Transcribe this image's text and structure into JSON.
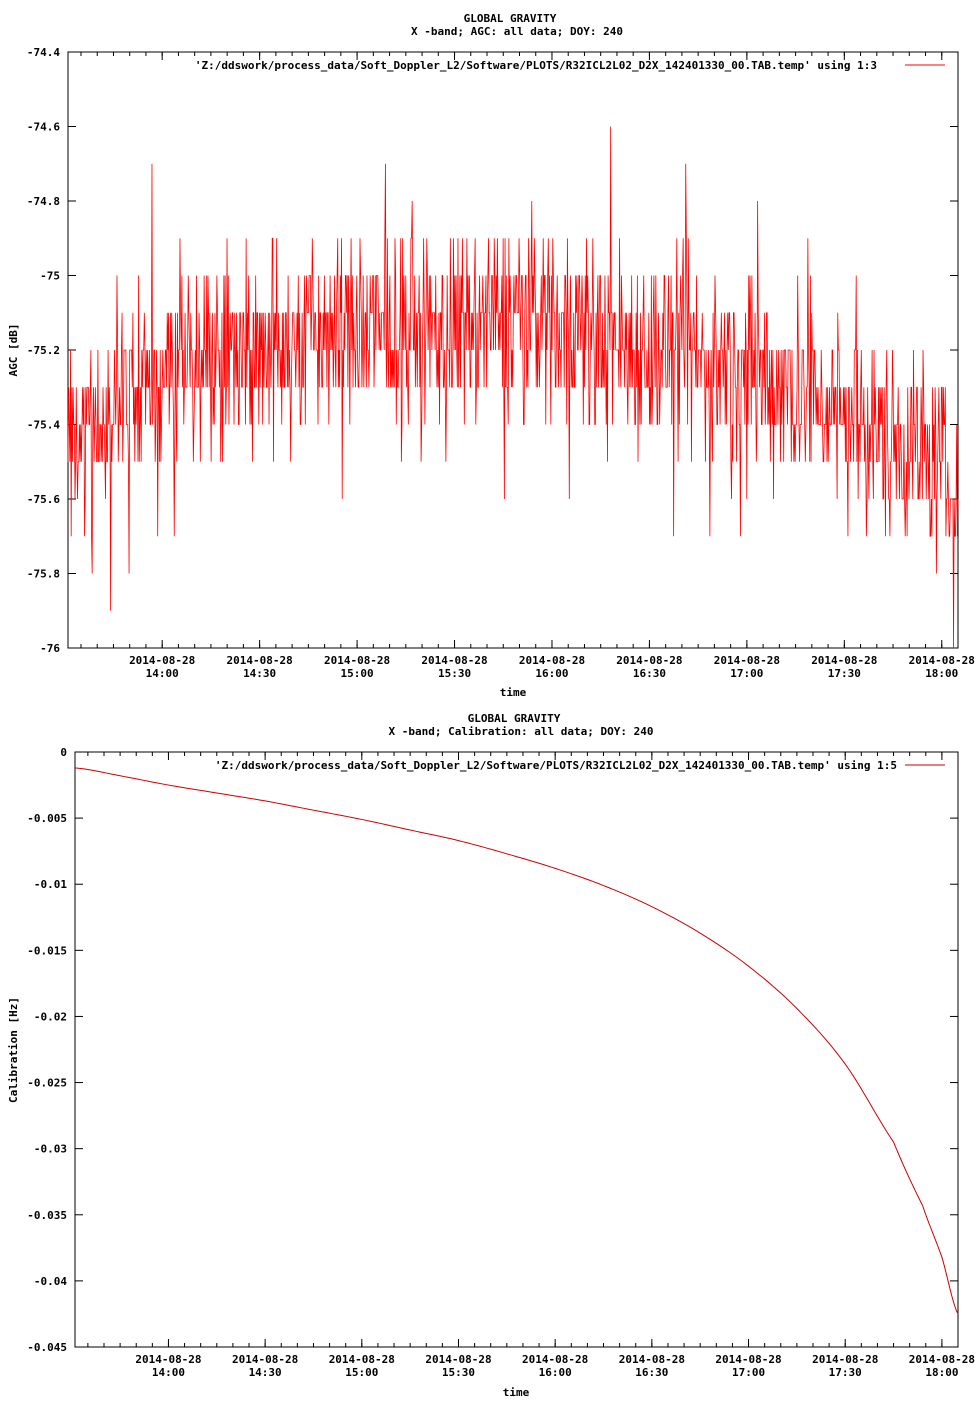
{
  "chart_data": [
    {
      "type": "line",
      "title": "GLOBAL GRAVITY",
      "subtitle": "X -band; AGC: all data; DOY: 240",
      "xlabel": "time",
      "ylabel": "AGC [dB]",
      "ylim": [
        -76,
        -74.4
      ],
      "yticks": [
        "-74.4",
        "-74.6",
        "-74.8",
        "-75",
        "-75.2",
        "-75.4",
        "-75.6",
        "-75.8",
        "-76"
      ],
      "ytick_values": [
        -74.4,
        -74.6,
        -74.8,
        -75,
        -75.2,
        -75.4,
        -75.6,
        -75.8,
        -76
      ],
      "xlim_hours": [
        13.5167,
        18.0833
      ],
      "xtick_hours": [
        14.0,
        14.5,
        15.0,
        15.5,
        16.0,
        16.5,
        17.0,
        17.5,
        18.0
      ],
      "xtick_dates": [
        "2014-08-28",
        "2014-08-28",
        "2014-08-28",
        "2014-08-28",
        "2014-08-28",
        "2014-08-28",
        "2014-08-28",
        "2014-08-28",
        "2014-08-28"
      ],
      "xtick_times": [
        "14:00",
        "14:30",
        "15:00",
        "15:30",
        "16:00",
        "16:30",
        "17:00",
        "17:30",
        "18:00"
      ],
      "legend": "'Z:/ddswork/process_data/Soft_Doppler_L2/Software/PLOTS/R32ICL2L02_D2X_142401330_00.TAB.temp' using 1:3",
      "legend_position": "top-right",
      "series_color": "#ff0000",
      "series": [
        {
          "x_hours": [
            13.52,
            13.65,
            13.8,
            14.0,
            14.2,
            14.4,
            14.6,
            14.8,
            15.0,
            15.2,
            15.4,
            15.6,
            15.8,
            16.0,
            16.2,
            16.4,
            16.6,
            16.8,
            17.0,
            17.2,
            17.4,
            17.6,
            17.8,
            18.0,
            18.08
          ],
          "values": [
            -75.5,
            -75.4,
            -75.35,
            -75.25,
            -75.2,
            -75.2,
            -75.2,
            -75.15,
            -75.15,
            -75.15,
            -75.15,
            -75.15,
            -75.1,
            -75.1,
            -75.15,
            -75.2,
            -75.2,
            -75.25,
            -75.25,
            -75.3,
            -75.35,
            -75.4,
            -75.45,
            -75.5,
            -75.6
          ],
          "spread": 0.25,
          "min": -76.0,
          "max": -74.6
        }
      ]
    },
    {
      "type": "line",
      "title": "GLOBAL GRAVITY",
      "subtitle": "X -band; Calibration: all data; DOY: 240",
      "xlabel": "time",
      "ylabel": "Calibration [Hz]",
      "ylim": [
        -0.045,
        0
      ],
      "yticks": [
        "0",
        "-0.005",
        "-0.01",
        "-0.015",
        "-0.02",
        "-0.025",
        "-0.03",
        "-0.035",
        "-0.04",
        "-0.045"
      ],
      "ytick_values": [
        0,
        -0.005,
        -0.01,
        -0.015,
        -0.02,
        -0.025,
        -0.03,
        -0.035,
        -0.04,
        -0.045
      ],
      "xlim_hours": [
        13.5167,
        18.0833
      ],
      "xtick_hours": [
        14.0,
        14.5,
        15.0,
        15.5,
        16.0,
        16.5,
        17.0,
        17.5,
        18.0
      ],
      "xtick_dates": [
        "2014-08-28",
        "2014-08-28",
        "2014-08-28",
        "2014-08-28",
        "2014-08-28",
        "2014-08-28",
        "2014-08-28",
        "2014-08-28",
        "2014-08-28"
      ],
      "xtick_times": [
        "14:00",
        "14:30",
        "15:00",
        "15:30",
        "16:00",
        "16:30",
        "17:00",
        "17:30",
        "18:00"
      ],
      "legend": "'Z:/ddswork/process_data/Soft_Doppler_L2/Software/PLOTS/R32ICL2L02_D2X_142401330_00.TAB.temp' using 1:5",
      "legend_position": "top-right",
      "series_color": "#cc0000",
      "series": [
        {
          "x_hours": [
            13.5167,
            13.75,
            14.0,
            14.25,
            14.5,
            14.75,
            15.0,
            15.25,
            15.5,
            15.75,
            16.0,
            16.25,
            16.5,
            16.75,
            17.0,
            17.25,
            17.5,
            17.75,
            17.9,
            18.0,
            18.0833
          ],
          "values": [
            -0.0012,
            -0.0018,
            -0.0025,
            -0.0031,
            -0.0037,
            -0.0044,
            -0.0051,
            -0.0059,
            -0.0067,
            -0.0077,
            -0.0088,
            -0.0101,
            -0.0117,
            -0.0137,
            -0.0162,
            -0.0194,
            -0.0236,
            -0.0295,
            -0.0343,
            -0.0382,
            -0.0425
          ]
        }
      ]
    }
  ]
}
